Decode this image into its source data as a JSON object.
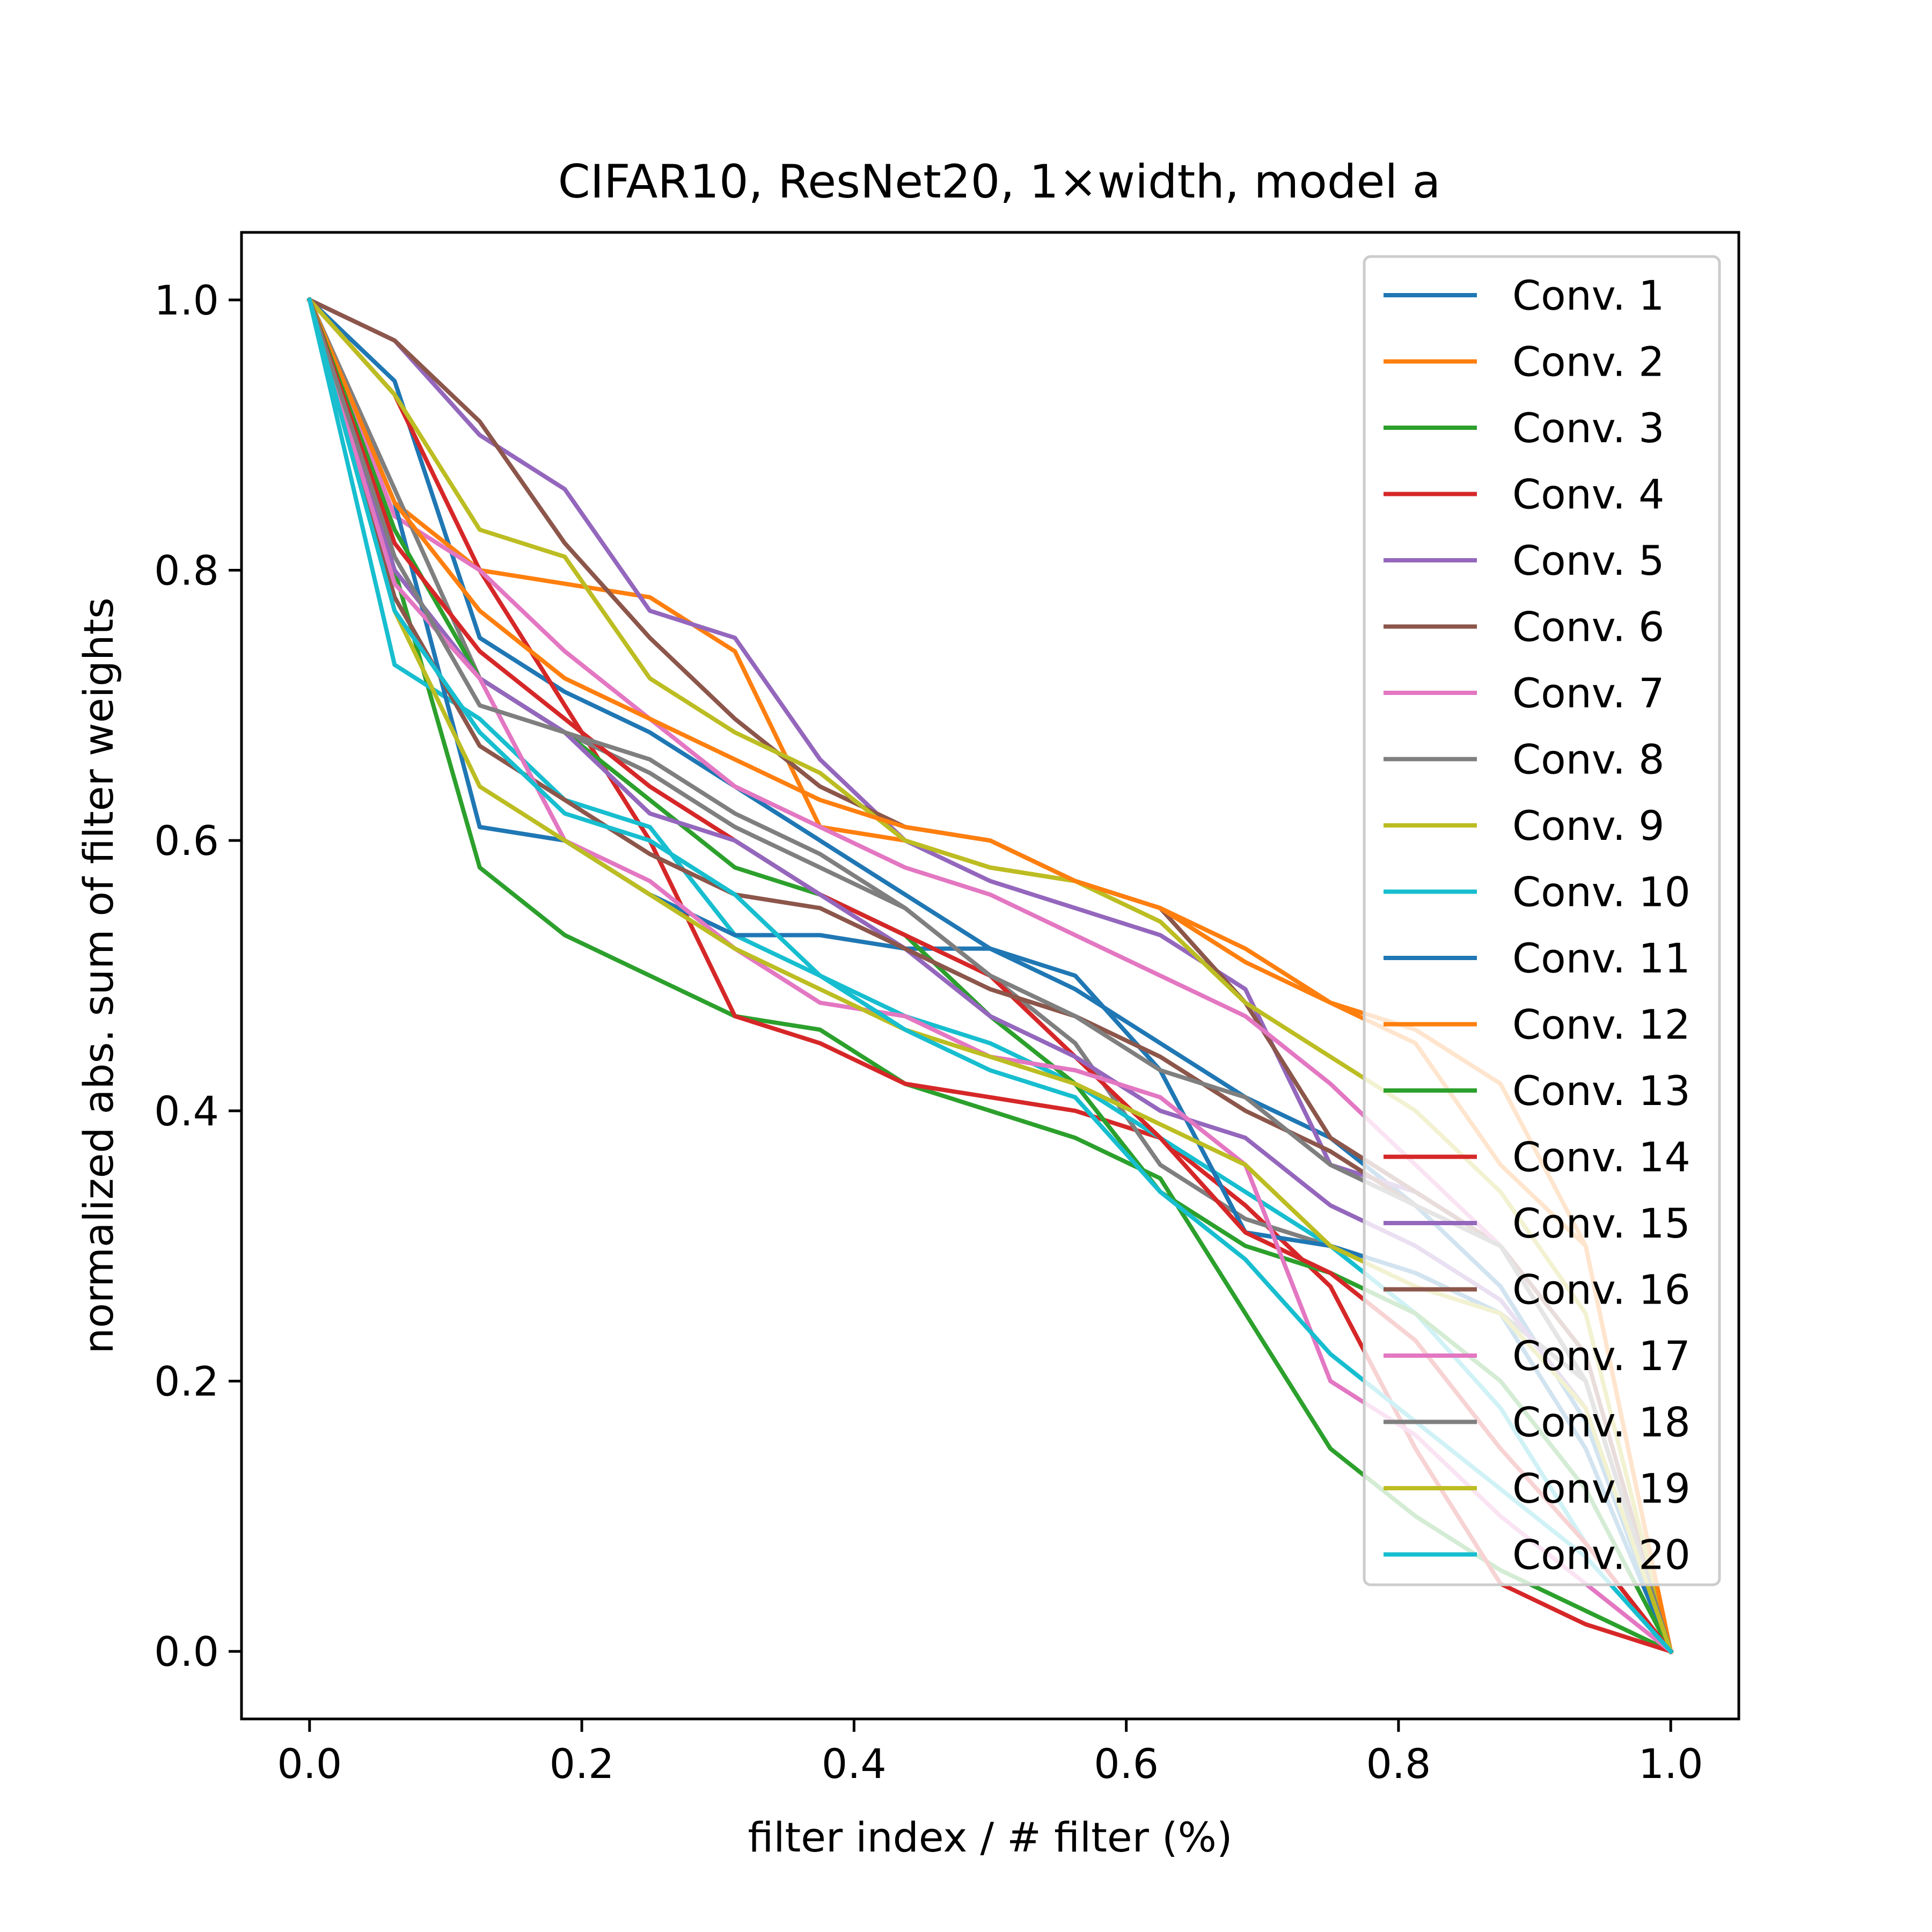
{
  "chart_data": {
    "type": "line",
    "title": "CIFAR10, ResNet20, 1×width, model a",
    "xlabel": "filter index / # filter (%)",
    "ylabel": "normalized abs. sum of filter weights",
    "xlim": [
      -0.05,
      1.05
    ],
    "ylim": [
      -0.05,
      1.05
    ],
    "xticks": [
      0.0,
      0.2,
      0.4,
      0.6,
      0.8,
      1.0
    ],
    "xtick_labels": [
      "0.0",
      "0.2",
      "0.4",
      "0.6",
      "0.8",
      "1.0"
    ],
    "yticks": [
      0.0,
      0.2,
      0.4,
      0.6,
      0.8,
      1.0
    ],
    "ytick_labels": [
      "0.0",
      "0.2",
      "0.4",
      "0.6",
      "0.8",
      "1.0"
    ],
    "grid": false,
    "legend_position": "top-right",
    "series": [
      {
        "name": "Conv. 1",
        "color": "#1f77b4",
        "x": [
          0,
          0.0625,
          0.125,
          0.1875,
          0.25,
          0.3125,
          0.375,
          0.4375,
          0.5,
          0.5625,
          0.625,
          0.6875,
          0.75,
          0.8125,
          0.875,
          0.9375,
          1.0
        ],
        "y": [
          1.0,
          0.94,
          0.75,
          0.71,
          0.68,
          0.64,
          0.6,
          0.56,
          0.52,
          0.49,
          0.45,
          0.41,
          0.38,
          0.33,
          0.27,
          0.17,
          0.0
        ]
      },
      {
        "name": "Conv. 2",
        "color": "#ff7f0e",
        "x": [
          0,
          0.0625,
          0.125,
          0.1875,
          0.25,
          0.3125,
          0.375,
          0.4375,
          0.5,
          0.5625,
          0.625,
          0.6875,
          0.75,
          0.8125,
          0.875,
          0.9375,
          1.0
        ],
        "y": [
          1.0,
          0.85,
          0.8,
          0.79,
          0.78,
          0.74,
          0.61,
          0.6,
          0.58,
          0.57,
          0.55,
          0.52,
          0.48,
          0.45,
          0.36,
          0.3,
          0.0
        ]
      },
      {
        "name": "Conv. 3",
        "color": "#2ca02c",
        "x": [
          0,
          0.0625,
          0.125,
          0.1875,
          0.25,
          0.3125,
          0.375,
          0.4375,
          0.5,
          0.5625,
          0.625,
          0.6875,
          0.75,
          0.8125,
          0.875,
          0.9375,
          1.0
        ],
        "y": [
          1.0,
          0.8,
          0.58,
          0.53,
          0.5,
          0.47,
          0.46,
          0.42,
          0.4,
          0.38,
          0.35,
          0.25,
          0.15,
          0.1,
          0.06,
          0.03,
          0.0
        ]
      },
      {
        "name": "Conv. 4",
        "color": "#d62728",
        "x": [
          0,
          0.0625,
          0.125,
          0.1875,
          0.25,
          0.3125,
          0.375,
          0.4375,
          0.5,
          0.5625,
          0.625,
          0.6875,
          0.75,
          0.8125,
          0.875,
          0.9375,
          1.0
        ],
        "y": [
          1.0,
          0.93,
          0.8,
          0.7,
          0.6,
          0.47,
          0.45,
          0.42,
          0.41,
          0.4,
          0.38,
          0.33,
          0.27,
          0.15,
          0.05,
          0.02,
          0.0
        ]
      },
      {
        "name": "Conv. 5",
        "color": "#9467bd",
        "x": [
          0,
          0.0625,
          0.125,
          0.1875,
          0.25,
          0.3125,
          0.375,
          0.4375,
          0.5,
          0.5625,
          0.625,
          0.6875,
          0.75,
          0.8125,
          0.875,
          0.9375,
          1.0
        ],
        "y": [
          1.0,
          0.97,
          0.9,
          0.86,
          0.77,
          0.75,
          0.66,
          0.6,
          0.57,
          0.55,
          0.53,
          0.49,
          0.36,
          0.34,
          0.3,
          0.2,
          0.0
        ]
      },
      {
        "name": "Conv. 6",
        "color": "#8c564b",
        "x": [
          0,
          0.0625,
          0.125,
          0.1875,
          0.25,
          0.3125,
          0.375,
          0.4375,
          0.5,
          0.5625,
          0.625,
          0.6875,
          0.75,
          0.8125,
          0.875,
          0.9375,
          1.0
        ],
        "y": [
          1.0,
          0.97,
          0.91,
          0.82,
          0.75,
          0.69,
          0.64,
          0.61,
          0.6,
          0.57,
          0.55,
          0.48,
          0.38,
          0.34,
          0.3,
          0.22,
          0.0
        ]
      },
      {
        "name": "Conv. 7",
        "color": "#e377c2",
        "x": [
          0,
          0.0625,
          0.125,
          0.1875,
          0.25,
          0.3125,
          0.375,
          0.4375,
          0.5,
          0.5625,
          0.625,
          0.6875,
          0.75,
          0.8125,
          0.875,
          0.9375,
          1.0
        ],
        "y": [
          1.0,
          0.84,
          0.8,
          0.74,
          0.69,
          0.64,
          0.61,
          0.58,
          0.56,
          0.53,
          0.5,
          0.47,
          0.42,
          0.36,
          0.3,
          0.2,
          0.0
        ]
      },
      {
        "name": "Conv. 8",
        "color": "#7f7f7f",
        "x": [
          0,
          0.0625,
          0.125,
          0.1875,
          0.25,
          0.3125,
          0.375,
          0.4375,
          0.5,
          0.5625,
          0.625,
          0.6875,
          0.75,
          0.8125,
          0.875,
          0.9375,
          1.0
        ],
        "y": [
          1.0,
          0.86,
          0.72,
          0.68,
          0.65,
          0.61,
          0.58,
          0.55,
          0.5,
          0.45,
          0.36,
          0.32,
          0.3,
          0.28,
          0.25,
          0.2,
          0.0
        ]
      },
      {
        "name": "Conv. 9",
        "color": "#bcbd22",
        "x": [
          0,
          0.0625,
          0.125,
          0.1875,
          0.25,
          0.3125,
          0.375,
          0.4375,
          0.5,
          0.5625,
          0.625,
          0.6875,
          0.75,
          0.8125,
          0.875,
          0.9375,
          1.0
        ],
        "y": [
          1.0,
          0.93,
          0.83,
          0.81,
          0.72,
          0.68,
          0.65,
          0.6,
          0.58,
          0.57,
          0.54,
          0.48,
          0.44,
          0.4,
          0.34,
          0.25,
          0.0
        ]
      },
      {
        "name": "Conv. 10",
        "color": "#17becf",
        "x": [
          0,
          0.0625,
          0.125,
          0.1875,
          0.25,
          0.3125,
          0.375,
          0.4375,
          0.5,
          0.5625,
          0.625,
          0.6875,
          0.75,
          0.8125,
          0.875,
          0.9375,
          1.0
        ],
        "y": [
          1.0,
          0.73,
          0.69,
          0.63,
          0.61,
          0.53,
          0.5,
          0.47,
          0.45,
          0.42,
          0.38,
          0.34,
          0.3,
          0.25,
          0.18,
          0.08,
          0.0
        ]
      },
      {
        "name": "Conv. 11",
        "color": "#1f77b4",
        "x": [
          0,
          0.0625,
          0.125,
          0.1875,
          0.25,
          0.3125,
          0.375,
          0.4375,
          0.5,
          0.5625,
          0.625,
          0.6875,
          0.75,
          0.8125,
          0.875,
          0.9375,
          1.0
        ],
        "y": [
          1.0,
          0.85,
          0.61,
          0.6,
          0.56,
          0.53,
          0.53,
          0.52,
          0.52,
          0.5,
          0.43,
          0.31,
          0.3,
          0.28,
          0.25,
          0.15,
          0.0
        ]
      },
      {
        "name": "Conv. 12",
        "color": "#ff7f0e",
        "x": [
          0,
          0.0625,
          0.125,
          0.1875,
          0.25,
          0.3125,
          0.375,
          0.4375,
          0.5,
          0.5625,
          0.625,
          0.6875,
          0.75,
          0.8125,
          0.875,
          0.9375,
          1.0
        ],
        "y": [
          1.0,
          0.85,
          0.77,
          0.72,
          0.69,
          0.66,
          0.63,
          0.61,
          0.6,
          0.57,
          0.55,
          0.51,
          0.48,
          0.46,
          0.42,
          0.3,
          0.0
        ]
      },
      {
        "name": "Conv. 13",
        "color": "#2ca02c",
        "x": [
          0,
          0.0625,
          0.125,
          0.1875,
          0.25,
          0.3125,
          0.375,
          0.4375,
          0.5,
          0.5625,
          0.625,
          0.6875,
          0.75,
          0.8125,
          0.875,
          0.9375,
          1.0
        ],
        "y": [
          1.0,
          0.83,
          0.72,
          0.68,
          0.63,
          0.58,
          0.56,
          0.53,
          0.47,
          0.42,
          0.34,
          0.3,
          0.28,
          0.25,
          0.2,
          0.12,
          0.0
        ]
      },
      {
        "name": "Conv. 14",
        "color": "#d62728",
        "x": [
          0,
          0.0625,
          0.125,
          0.1875,
          0.25,
          0.3125,
          0.375,
          0.4375,
          0.5,
          0.5625,
          0.625,
          0.6875,
          0.75,
          0.8125,
          0.875,
          0.9375,
          1.0
        ],
        "y": [
          1.0,
          0.82,
          0.74,
          0.69,
          0.64,
          0.6,
          0.56,
          0.53,
          0.5,
          0.44,
          0.38,
          0.31,
          0.28,
          0.23,
          0.15,
          0.08,
          0.0
        ]
      },
      {
        "name": "Conv. 15",
        "color": "#9467bd",
        "x": [
          0,
          0.0625,
          0.125,
          0.1875,
          0.25,
          0.3125,
          0.375,
          0.4375,
          0.5,
          0.5625,
          0.625,
          0.6875,
          0.75,
          0.8125,
          0.875,
          0.9375,
          1.0
        ],
        "y": [
          1.0,
          0.8,
          0.72,
          0.68,
          0.62,
          0.6,
          0.56,
          0.52,
          0.47,
          0.44,
          0.4,
          0.38,
          0.33,
          0.3,
          0.26,
          0.18,
          0.0
        ]
      },
      {
        "name": "Conv. 16",
        "color": "#8c564b",
        "x": [
          0,
          0.0625,
          0.125,
          0.1875,
          0.25,
          0.3125,
          0.375,
          0.4375,
          0.5,
          0.5625,
          0.625,
          0.6875,
          0.75,
          0.8125,
          0.875,
          0.9375,
          1.0
        ],
        "y": [
          1.0,
          0.78,
          0.67,
          0.63,
          0.59,
          0.56,
          0.55,
          0.52,
          0.49,
          0.47,
          0.44,
          0.4,
          0.37,
          0.33,
          0.3,
          0.2,
          0.0
        ]
      },
      {
        "name": "Conv. 17",
        "color": "#e377c2",
        "x": [
          0,
          0.0625,
          0.125,
          0.1875,
          0.25,
          0.3125,
          0.375,
          0.4375,
          0.5,
          0.5625,
          0.625,
          0.6875,
          0.75,
          0.8125,
          0.875,
          0.9375,
          1.0
        ],
        "y": [
          1.0,
          0.79,
          0.72,
          0.6,
          0.57,
          0.52,
          0.48,
          0.47,
          0.44,
          0.43,
          0.41,
          0.36,
          0.2,
          0.16,
          0.1,
          0.05,
          0.0
        ]
      },
      {
        "name": "Conv. 18",
        "color": "#7f7f7f",
        "x": [
          0,
          0.0625,
          0.125,
          0.1875,
          0.25,
          0.3125,
          0.375,
          0.4375,
          0.5,
          0.5625,
          0.625,
          0.6875,
          0.75,
          0.8125,
          0.875,
          0.9375,
          1.0
        ],
        "y": [
          1.0,
          0.81,
          0.7,
          0.68,
          0.66,
          0.62,
          0.59,
          0.55,
          0.5,
          0.47,
          0.43,
          0.41,
          0.36,
          0.33,
          0.3,
          0.2,
          0.0
        ]
      },
      {
        "name": "Conv. 19",
        "color": "#bcbd22",
        "x": [
          0,
          0.0625,
          0.125,
          0.1875,
          0.25,
          0.3125,
          0.375,
          0.4375,
          0.5,
          0.5625,
          0.625,
          0.6875,
          0.75,
          0.8125,
          0.875,
          0.9375,
          1.0
        ],
        "y": [
          1.0,
          0.77,
          0.64,
          0.6,
          0.56,
          0.52,
          0.49,
          0.46,
          0.44,
          0.42,
          0.39,
          0.36,
          0.3,
          0.27,
          0.25,
          0.18,
          0.0
        ]
      },
      {
        "name": "Conv. 20",
        "color": "#17becf",
        "x": [
          0,
          0.0625,
          0.125,
          0.1875,
          0.25,
          0.3125,
          0.375,
          0.4375,
          0.5,
          0.5625,
          0.625,
          0.6875,
          0.75,
          0.8125,
          0.875,
          0.9375,
          1.0
        ],
        "y": [
          1.0,
          0.77,
          0.68,
          0.62,
          0.6,
          0.56,
          0.5,
          0.46,
          0.43,
          0.41,
          0.34,
          0.29,
          0.22,
          0.17,
          0.12,
          0.07,
          0.0
        ]
      }
    ]
  }
}
